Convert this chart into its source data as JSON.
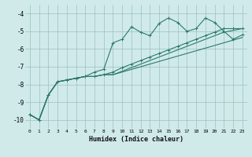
{
  "xlabel": "Humidex (Indice chaleur)",
  "bg_color": "#d0eaea",
  "grid_color": "#9bbfbf",
  "line_color": "#2d7a6a",
  "xlim": [
    -0.5,
    23.5
  ],
  "ylim": [
    -10.5,
    -3.5
  ],
  "xticks": [
    0,
    1,
    2,
    3,
    4,
    5,
    6,
    7,
    8,
    9,
    10,
    11,
    12,
    13,
    14,
    15,
    16,
    17,
    18,
    19,
    20,
    21,
    22,
    23
  ],
  "yticks": [
    -10,
    -9,
    -8,
    -7,
    -6,
    -5,
    -4
  ],
  "line1_x": [
    0,
    1,
    2,
    3,
    4,
    5,
    6,
    7,
    8,
    9,
    10,
    11,
    12,
    13,
    14,
    15,
    16,
    17,
    18,
    19,
    20,
    21,
    22,
    23
  ],
  "line1_y": [
    -9.7,
    -10.0,
    -8.6,
    -7.85,
    -7.75,
    -7.65,
    -7.55,
    -7.3,
    -7.15,
    -5.65,
    -5.45,
    -4.75,
    -5.05,
    -5.25,
    -4.55,
    -4.25,
    -4.5,
    -5.0,
    -4.85,
    -4.25,
    -4.5,
    -5.0,
    -5.45,
    -5.2
  ],
  "line2_x": [
    0,
    1,
    2,
    3,
    4,
    5,
    6,
    7,
    8,
    9,
    10,
    11,
    12,
    13,
    14,
    15,
    16,
    17,
    18,
    19,
    20,
    21,
    22,
    23
  ],
  "line2_y": [
    -9.7,
    -10.0,
    -8.6,
    -7.85,
    -7.75,
    -7.65,
    -7.55,
    -7.55,
    -7.45,
    -7.3,
    -7.05,
    -6.85,
    -6.65,
    -6.45,
    -6.25,
    -6.05,
    -5.85,
    -5.65,
    -5.45,
    -5.25,
    -5.05,
    -4.85,
    -4.85,
    -4.85
  ],
  "line3_x": [
    0,
    1,
    2,
    3,
    4,
    5,
    6,
    7,
    8,
    9,
    10,
    11,
    12,
    13,
    14,
    15,
    16,
    17,
    18,
    19,
    20,
    21,
    22,
    23
  ],
  "line3_y": [
    -9.7,
    -10.0,
    -8.6,
    -7.85,
    -7.75,
    -7.65,
    -7.55,
    -7.55,
    -7.45,
    -7.45,
    -7.25,
    -7.05,
    -6.85,
    -6.65,
    -6.45,
    -6.25,
    -6.05,
    -5.85,
    -5.65,
    -5.45,
    -5.25,
    -5.05,
    -4.95,
    -4.85
  ],
  "line4_x": [
    0,
    1,
    2,
    3,
    4,
    5,
    6,
    7,
    8,
    9,
    10,
    11,
    12,
    13,
    14,
    15,
    16,
    17,
    18,
    19,
    20,
    21,
    22,
    23
  ],
  "line4_y": [
    -9.7,
    -10.0,
    -8.6,
    -7.85,
    -7.75,
    -7.65,
    -7.55,
    -7.55,
    -7.45,
    -7.45,
    -7.3,
    -7.15,
    -7.0,
    -6.85,
    -6.7,
    -6.55,
    -6.4,
    -6.25,
    -6.1,
    -5.95,
    -5.8,
    -5.65,
    -5.5,
    -5.35
  ]
}
